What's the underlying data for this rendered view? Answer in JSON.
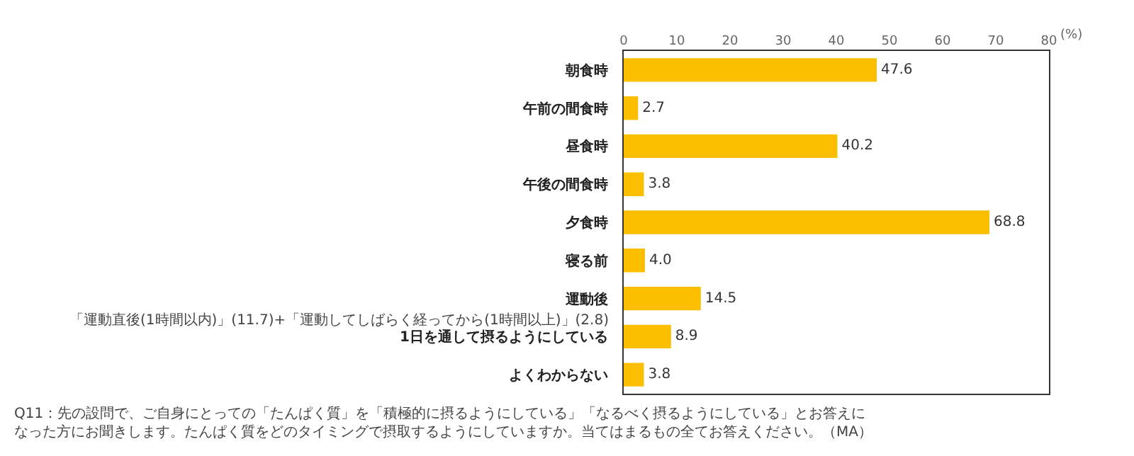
{
  "chart_data": {
    "type": "bar",
    "orientation": "horizontal",
    "categories": [
      "朝食時",
      "午前の間食時",
      "昼食時",
      "午後の間食時",
      "夕食時",
      "寝る前",
      "運動後",
      "1日を通して摂るようにしている",
      "よくわからない"
    ],
    "values": [
      47.6,
      2.7,
      40.2,
      3.8,
      68.8,
      4.0,
      14.5,
      8.9,
      3.8
    ],
    "value_labels": [
      "47.6",
      "2.7",
      "40.2",
      "3.8",
      "68.8",
      "4.0",
      "14.5",
      "8.9",
      "3.8"
    ],
    "color": "#fcbf00",
    "xlim": [
      0,
      80
    ],
    "xticks": [
      0,
      10,
      20,
      30,
      40,
      50,
      60,
      70,
      80
    ],
    "xlabel": "(%)",
    "grid": false,
    "legend": false,
    "annotations": [
      "「運動直後(1時間以内)」(11.7)+「運動してしばらく経ってから(1時間以上)」(2.8)",
      "Q11：先の設問で、ご自身にとっての「たんぱく質」を「積極的に摂るようにしている」「なるべく摂るようにしている」とお答えになった方にお聞きします。たんぱく質をどのタイミングで摂取するようにしていますか。当てはまるもの全てお答えください。（MA）"
    ]
  }
}
